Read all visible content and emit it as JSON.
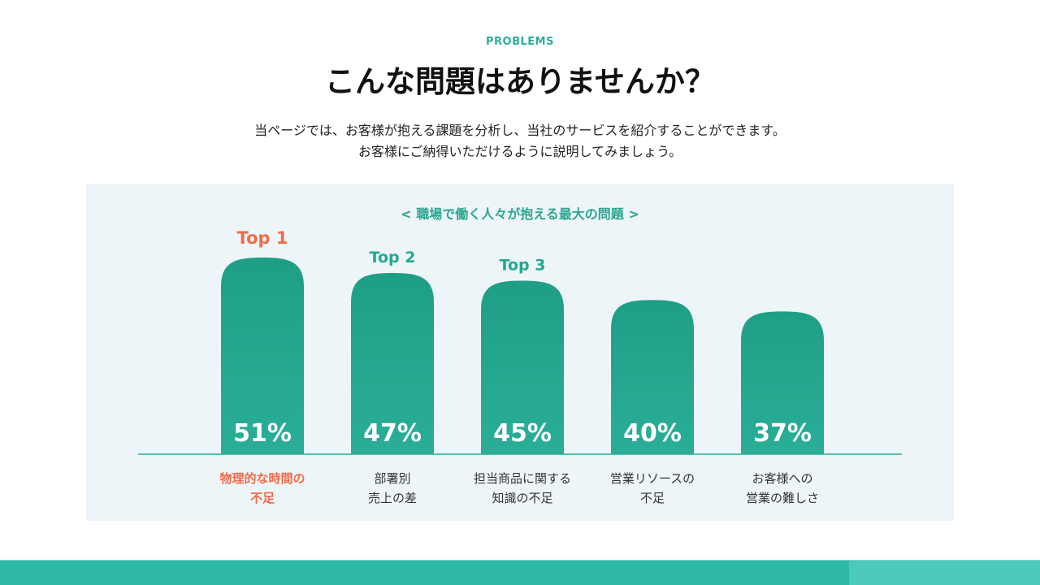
{
  "header": {
    "eyebrow": "PROBLEMS",
    "title": "こんな問題はありませんか？",
    "description_lines": [
      "当ページでは、お客様が抱える課題を分析し、当社のサービスを紹介することができます。",
      "お客様にご納得いただけるように説明してみましょう。"
    ]
  },
  "colors": {
    "accent": "#23a892",
    "highlight": "#f26b4b",
    "panel": "#eef5f8",
    "footer": "#2eb8a6"
  },
  "chart_data": {
    "type": "bar",
    "title": "< 職場で働く人々が抱える最大の問題 >",
    "categories": [
      [
        "物理的な時間の",
        "不足"
      ],
      [
        "部署別",
        "売上の差"
      ],
      [
        "担当商品に関する",
        "知識の不足"
      ],
      [
        "営業リソースの",
        "不足"
      ],
      [
        "お客様への",
        "営業の難しさ"
      ]
    ],
    "values": [
      51,
      47,
      45,
      40,
      37
    ],
    "value_labels": [
      "51%",
      "47%",
      "45%",
      "40%",
      "37%"
    ],
    "rank_labels": [
      "Top 1",
      "Top 2",
      "Top 3",
      "",
      ""
    ],
    "highlight_index": 0,
    "ylim": [
      0,
      51
    ],
    "grid": false,
    "legend": "none"
  }
}
